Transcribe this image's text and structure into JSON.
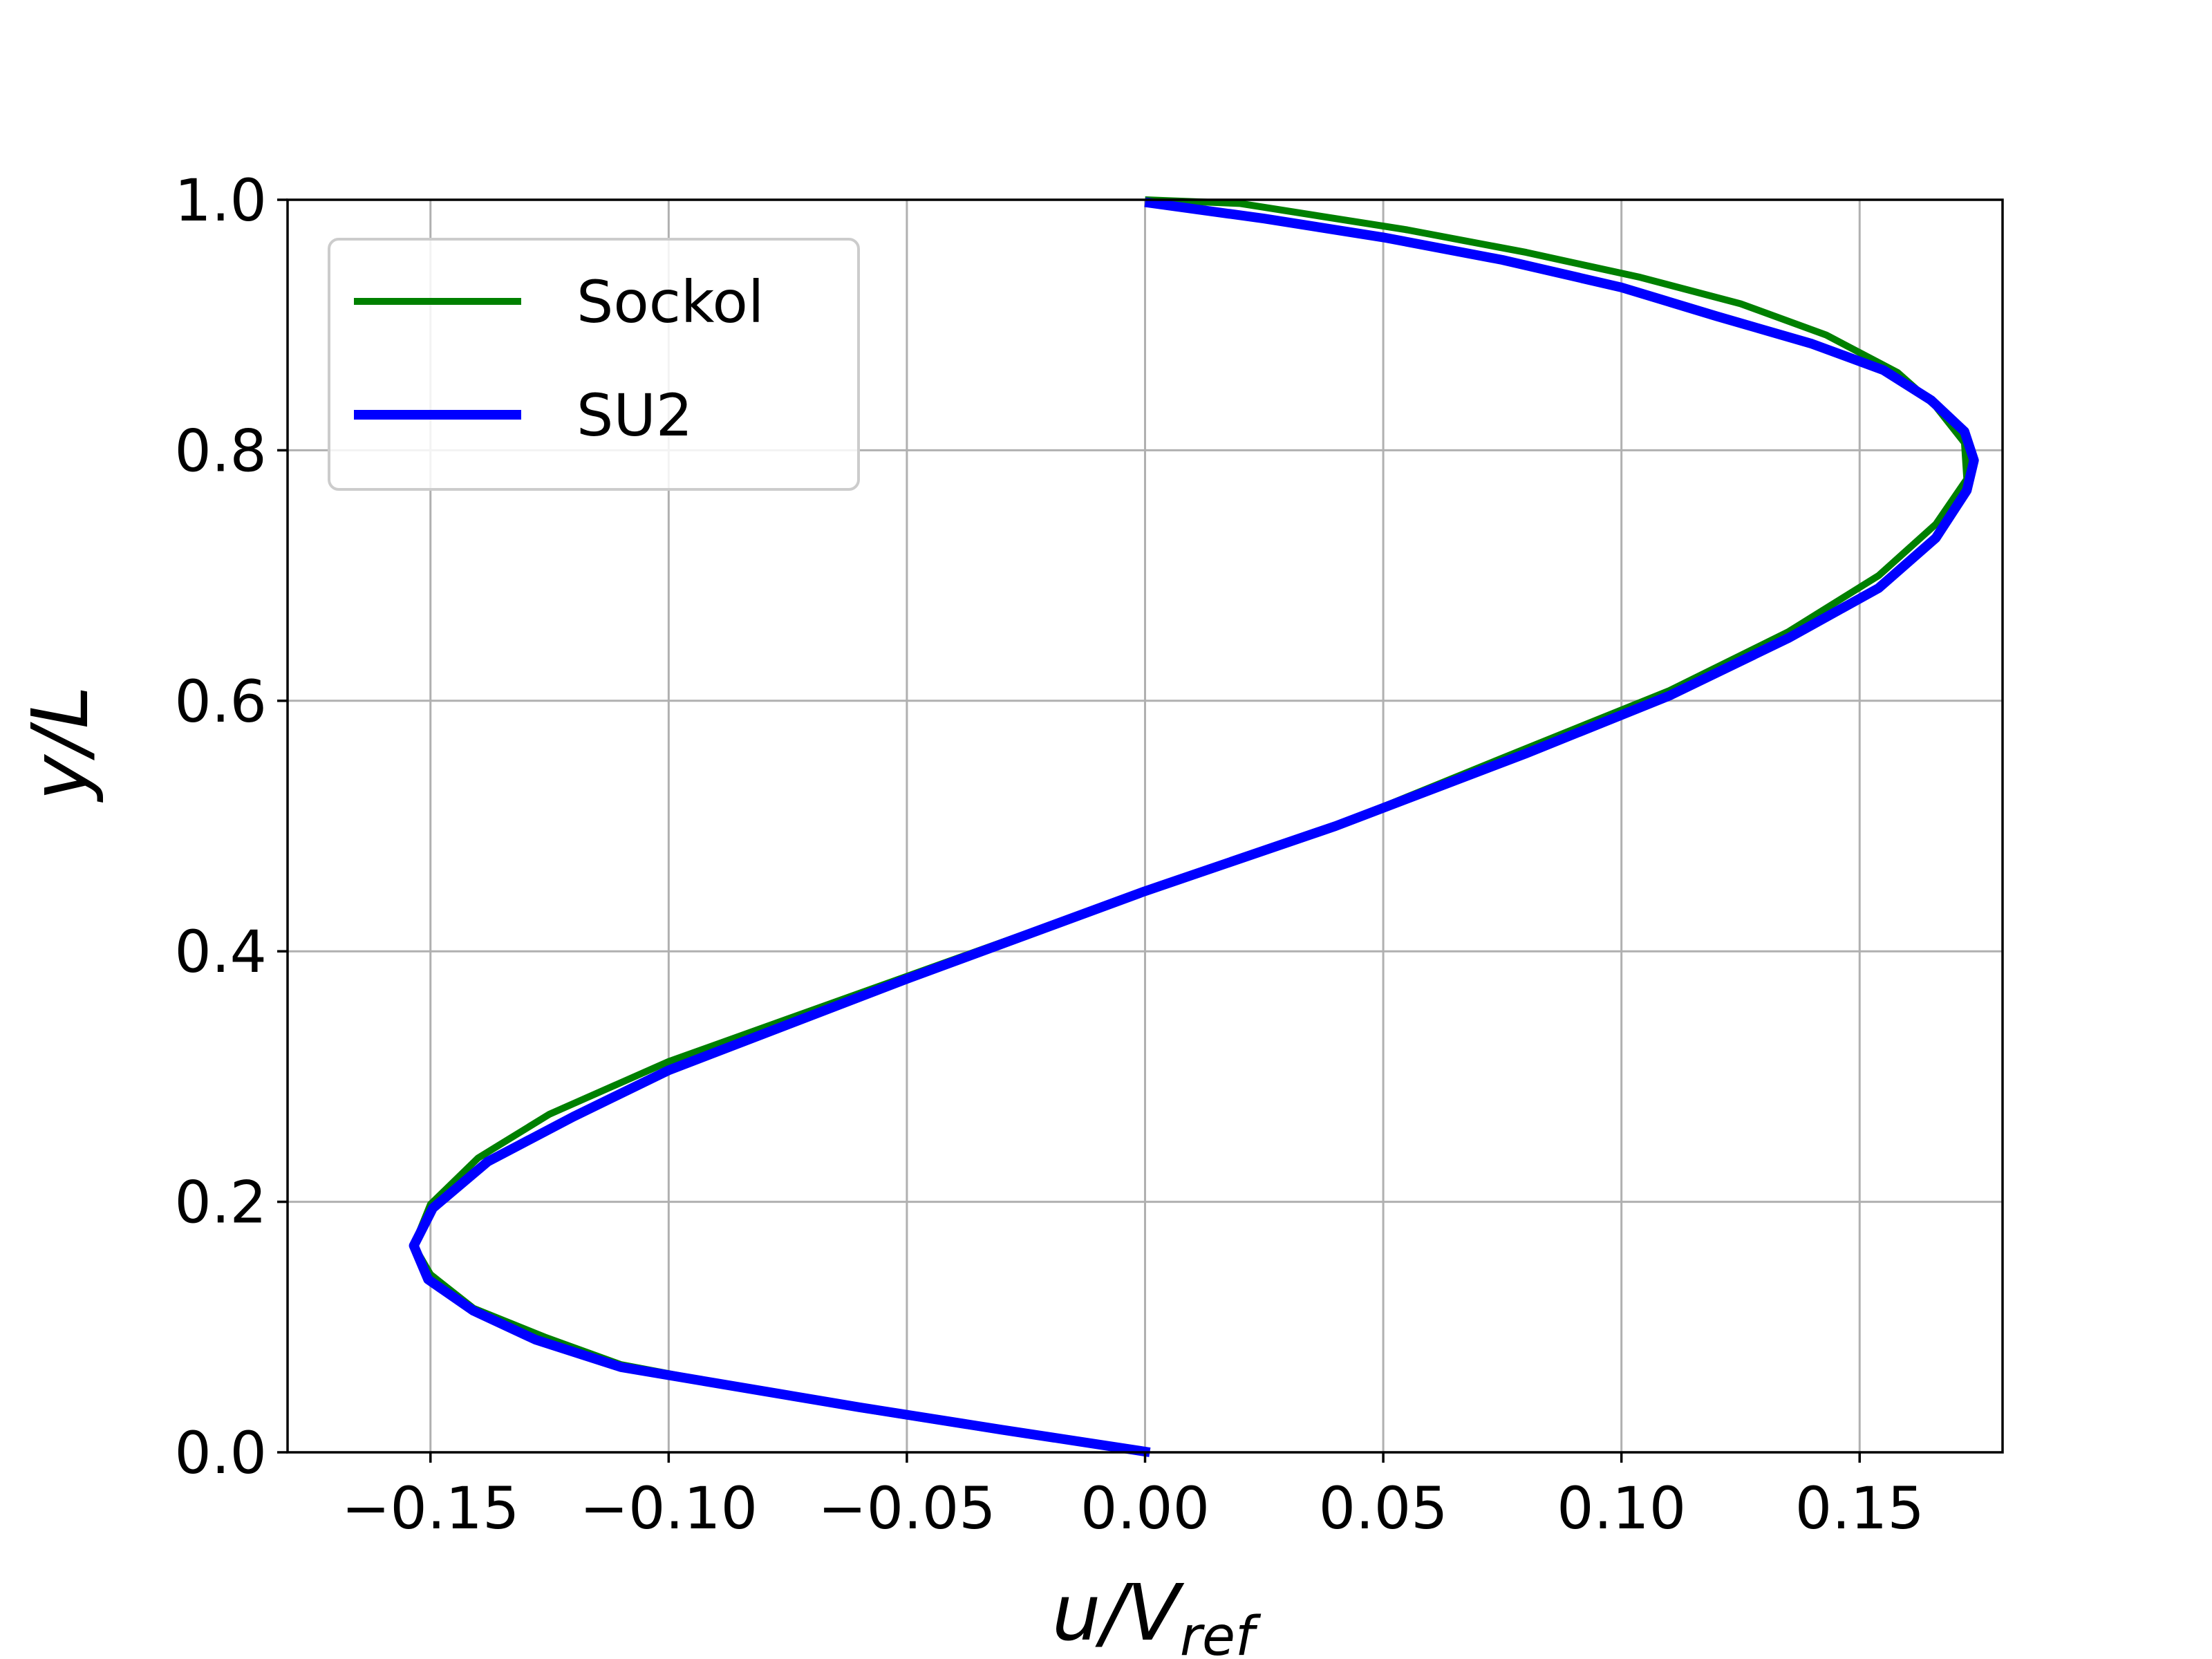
{
  "chart_data": {
    "type": "line",
    "title": "",
    "xlabel": "u/Vref",
    "xlabel_parts": {
      "base": "u/V",
      "sub": "ref"
    },
    "ylabel": "y/L",
    "xlim": [
      -0.18,
      0.18
    ],
    "ylim": [
      0.0,
      1.0
    ],
    "xticks": [
      -0.15,
      -0.1,
      -0.05,
      0.0,
      0.05,
      0.1,
      0.15
    ],
    "xtick_labels": [
      "−0.15",
      "−0.10",
      "−0.05",
      "0.00",
      "0.05",
      "0.10",
      "0.15"
    ],
    "yticks": [
      0.0,
      0.2,
      0.4,
      0.6,
      0.8,
      1.0
    ],
    "ytick_labels": [
      "0.0",
      "0.2",
      "0.4",
      "0.6",
      "0.8",
      "1.0"
    ],
    "grid": true,
    "legend_position": "upper-left",
    "series": [
      {
        "name": "Sockol",
        "color": "#008000",
        "points": [
          [
            0.0,
            0.0
          ],
          [
            -0.03,
            0.017
          ],
          [
            -0.06,
            0.035
          ],
          [
            -0.085,
            0.052
          ],
          [
            -0.11,
            0.07
          ],
          [
            -0.126,
            0.092
          ],
          [
            -0.141,
            0.115
          ],
          [
            -0.15,
            0.142
          ],
          [
            -0.1535,
            0.165
          ],
          [
            -0.15,
            0.198
          ],
          [
            -0.14,
            0.235
          ],
          [
            -0.125,
            0.27
          ],
          [
            -0.1,
            0.312
          ],
          [
            -0.05,
            0.38
          ],
          [
            0.0,
            0.448
          ],
          [
            0.04,
            0.5
          ],
          [
            0.08,
            0.562
          ],
          [
            0.11,
            0.608
          ],
          [
            0.135,
            0.655
          ],
          [
            0.154,
            0.7
          ],
          [
            0.166,
            0.741
          ],
          [
            0.1725,
            0.777
          ],
          [
            0.172,
            0.806
          ],
          [
            0.166,
            0.835
          ],
          [
            0.158,
            0.862
          ],
          [
            0.143,
            0.892
          ],
          [
            0.125,
            0.917
          ],
          [
            0.104,
            0.938
          ],
          [
            0.08,
            0.958
          ],
          [
            0.055,
            0.976
          ],
          [
            0.02,
            0.997
          ],
          [
            0.0,
            1.0
          ]
        ]
      },
      {
        "name": "SU2",
        "color": "#0000ff",
        "points": [
          [
            0.001,
            0.0
          ],
          [
            -0.03,
            0.018
          ],
          [
            -0.06,
            0.036
          ],
          [
            -0.085,
            0.052
          ],
          [
            -0.11,
            0.068
          ],
          [
            -0.128,
            0.09
          ],
          [
            -0.141,
            0.113
          ],
          [
            -0.1505,
            0.138
          ],
          [
            -0.1535,
            0.165
          ],
          [
            -0.1495,
            0.195
          ],
          [
            -0.138,
            0.232
          ],
          [
            -0.12,
            0.268
          ],
          [
            -0.1,
            0.305
          ],
          [
            -0.05,
            0.378
          ],
          [
            0.0,
            0.448
          ],
          [
            0.04,
            0.5
          ],
          [
            0.08,
            0.558
          ],
          [
            0.11,
            0.604
          ],
          [
            0.135,
            0.65
          ],
          [
            0.154,
            0.69
          ],
          [
            0.166,
            0.73
          ],
          [
            0.1725,
            0.768
          ],
          [
            0.174,
            0.792
          ],
          [
            0.172,
            0.815
          ],
          [
            0.165,
            0.84
          ],
          [
            0.155,
            0.864
          ],
          [
            0.14,
            0.885
          ],
          [
            0.12,
            0.907
          ],
          [
            0.1,
            0.93
          ],
          [
            0.075,
            0.952
          ],
          [
            0.05,
            0.97
          ],
          [
            0.025,
            0.985
          ],
          [
            0.0,
            0.998
          ]
        ]
      }
    ]
  }
}
